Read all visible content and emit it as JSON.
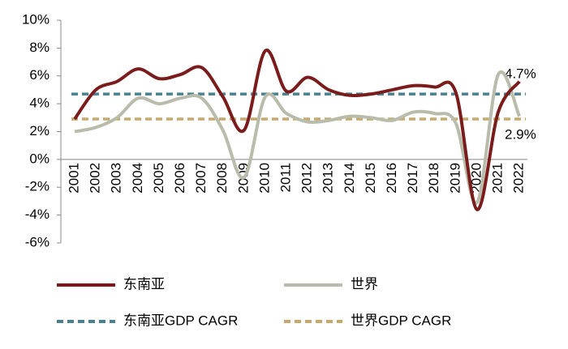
{
  "chart_data": {
    "type": "line",
    "categories": [
      "2001",
      "2002",
      "2003",
      "2004",
      "2005",
      "2006",
      "2007",
      "2008",
      "2009",
      "2010",
      "2011",
      "2012",
      "2013",
      "2014",
      "2015",
      "2016",
      "2017",
      "2018",
      "2019",
      "2020",
      "2021",
      "2022"
    ],
    "series": [
      {
        "name": "东南亚",
        "color": "#7b1c1c",
        "values": [
          2.9,
          5.0,
          5.6,
          6.5,
          5.8,
          6.1,
          6.6,
          4.5,
          2.1,
          7.8,
          4.9,
          5.9,
          5.0,
          4.6,
          4.7,
          5.0,
          5.3,
          5.2,
          4.8,
          -3.6,
          3.4,
          5.6
        ]
      },
      {
        "name": "世界",
        "color": "#b9bcab",
        "values": [
          2.0,
          2.3,
          3.0,
          4.4,
          4.0,
          4.4,
          4.4,
          2.1,
          -1.3,
          4.5,
          3.3,
          2.7,
          2.8,
          3.1,
          3.0,
          2.8,
          3.4,
          3.3,
          2.6,
          -3.1,
          6.1,
          3.1
        ]
      }
    ],
    "reference_lines": [
      {
        "name": "东南亚GDP CAGR",
        "color": "#4a8191",
        "value": 4.7,
        "value_label": "4.7%"
      },
      {
        "name": "世界GDP CAGR",
        "color": "#c6a96c",
        "value": 2.9,
        "value_label": "2.9%"
      }
    ],
    "ylim": [
      -6,
      10
    ],
    "yticks": [
      {
        "value": -6,
        "label": "-6%"
      },
      {
        "value": -4,
        "label": "-4%"
      },
      {
        "value": -2,
        "label": "-2%"
      },
      {
        "value": 0,
        "label": "0%"
      },
      {
        "value": 2,
        "label": "2%"
      },
      {
        "value": 4,
        "label": "4%"
      },
      {
        "value": 6,
        "label": "6%"
      },
      {
        "value": 8,
        "label": "8%"
      },
      {
        "value": 10,
        "label": "10%"
      }
    ],
    "grid": false
  }
}
